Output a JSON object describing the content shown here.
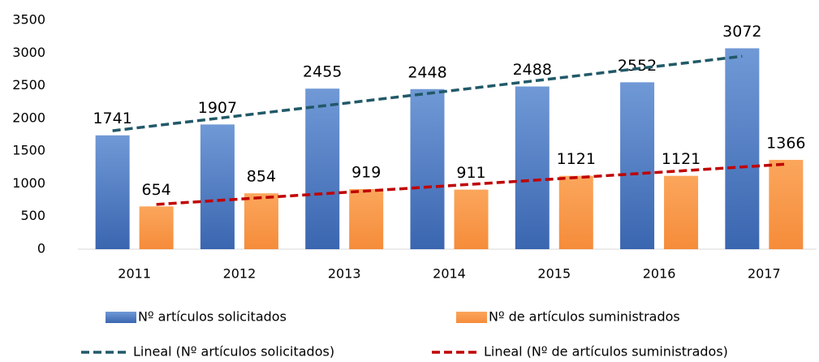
{
  "chart_data": {
    "type": "bar",
    "categories": [
      "2011",
      "2012",
      "2013",
      "2014",
      "2015",
      "2016",
      "2017"
    ],
    "series": [
      {
        "name": "Nº artículos solicitados",
        "color": "#4472c4",
        "values": [
          1741,
          1907,
          2455,
          2448,
          2488,
          2552,
          3072
        ]
      },
      {
        "name": "Nº de artículos suministrados",
        "color": "#f79646",
        "values": [
          654,
          854,
          919,
          911,
          1121,
          1121,
          1366
        ]
      }
    ],
    "trendlines": [
      {
        "name": "Lineal (Nº artículos solicitados)",
        "series": 0,
        "color": "#215968"
      },
      {
        "name": "Lineal (Nº de artículos suministrados)",
        "series": 1,
        "color": "#c00000"
      }
    ],
    "ylim": [
      0,
      3500
    ],
    "yticks": [
      0,
      500,
      1000,
      1500,
      2000,
      2500,
      3000,
      3500
    ],
    "grid": false
  }
}
